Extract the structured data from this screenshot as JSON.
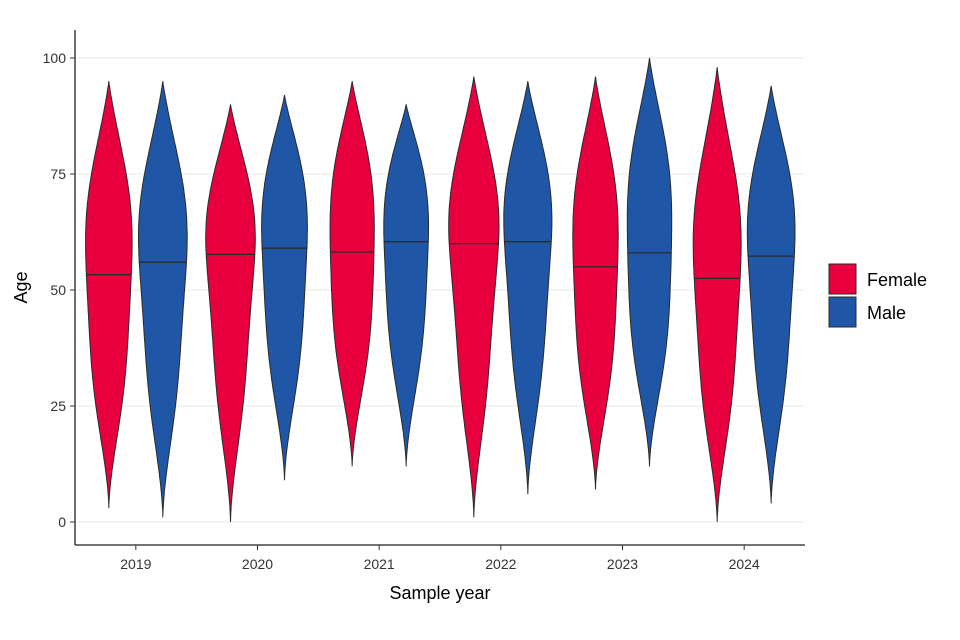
{
  "chart_data": {
    "type": "violin",
    "title": "",
    "xlabel": "Sample year",
    "ylabel": "Age",
    "categories": [
      "2019",
      "2020",
      "2021",
      "2022",
      "2023",
      "2024"
    ],
    "ylim": [
      0,
      100
    ],
    "yticks": [
      0,
      25,
      50,
      75,
      100
    ],
    "grid": "horizontal major lines",
    "legend": {
      "position": "right",
      "entries": [
        "Female",
        "Male"
      ]
    },
    "series": [
      {
        "name": "Female",
        "color": "#e8003e",
        "min": [
          3,
          0,
          12,
          1,
          7,
          0
        ],
        "max": [
          95,
          90,
          95,
          96,
          96,
          98
        ],
        "median": [
          53.3,
          57.7,
          58.2,
          60.0,
          55.0,
          52.5
        ]
      },
      {
        "name": "Male",
        "color": "#1f56a5",
        "min": [
          1,
          9,
          12,
          6,
          12,
          4
        ],
        "max": [
          95,
          92,
          90,
          95,
          100,
          94
        ],
        "median": [
          56.0,
          59.0,
          60.4,
          60.4,
          58.0,
          57.3
        ]
      }
    ]
  }
}
